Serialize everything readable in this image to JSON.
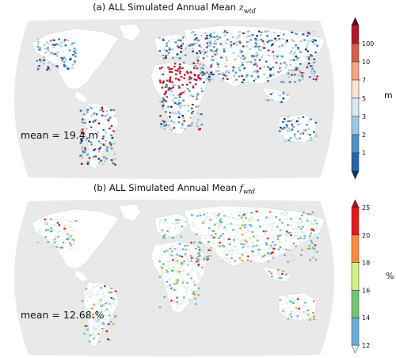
{
  "panels": [
    {
      "id": "a",
      "title_prefix": "(a) ALL Simulated Annual Mean ",
      "title_var": "z",
      "title_sub": "wtd",
      "mean_label": "mean = 19.4 m",
      "unit": "m",
      "colorbar": {
        "ticks": [
          "1",
          "2",
          "3",
          "5",
          "7",
          "10",
          "100"
        ],
        "colors": [
          "#08306b",
          "#2166ac",
          "#4f90c6",
          "#9ecae1",
          "#d8e8f3",
          "#fde0d2",
          "#f4a582",
          "#d6604d",
          "#b2182b",
          "#67001f"
        ]
      }
    },
    {
      "id": "b",
      "title_prefix": "(b) ALL Simulated Annual Mean ",
      "title_var": "f",
      "title_sub": "wtd",
      "mean_label": "mean = 12.68 %",
      "unit": "%",
      "colorbar": {
        "ticks": [
          "12",
          "14",
          "16",
          "18",
          "20",
          "25"
        ],
        "colors": [
          "#deebf7",
          "#6baed6",
          "#74c476",
          "#d9ef8b",
          "#fd8d3c",
          "#e31a1c",
          "#b10026"
        ]
      }
    }
  ],
  "map_colors": {
    "ocean": "#ffffff",
    "land_bg": "#e9e9e9",
    "no_data": "#ffffff"
  }
}
